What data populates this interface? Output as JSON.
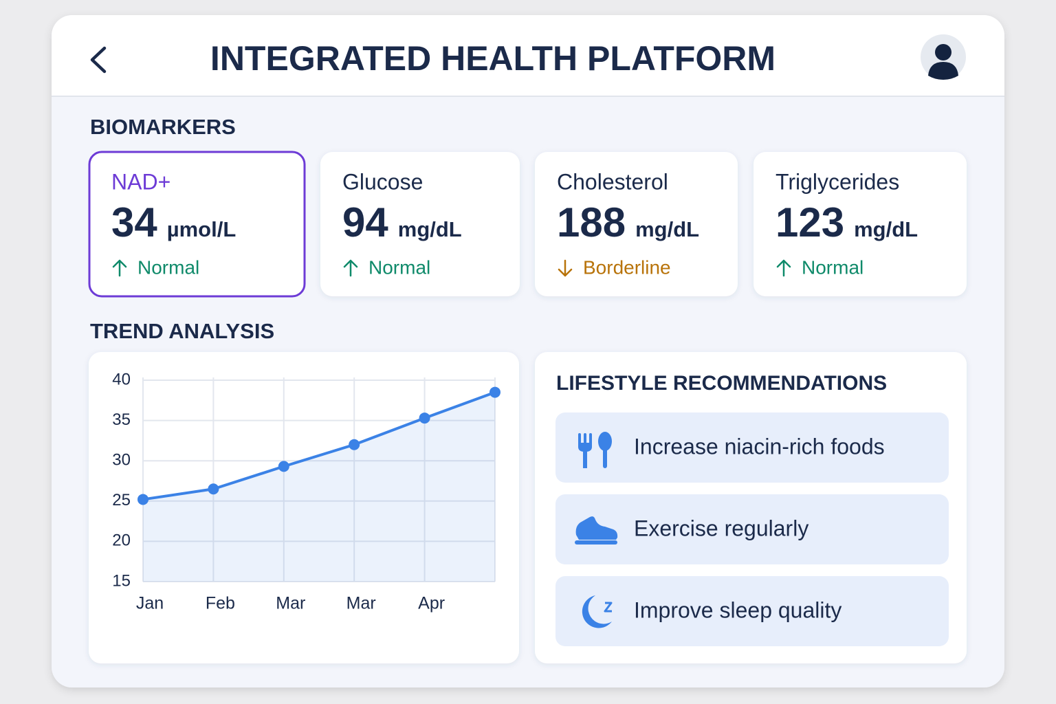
{
  "header": {
    "title": "INTEGRATED HEALTH PLATFORM"
  },
  "biomarkers": {
    "heading": "BIOMARKERS",
    "highlight_color": "#6d3bd6",
    "items": [
      {
        "name": "NAD+",
        "value": 34,
        "unit": "µmol/L",
        "status": "Normal",
        "trend": "up",
        "color": "#0f8a6a",
        "selected": true
      },
      {
        "name": "Glucose",
        "value": 94,
        "unit": "mg/dL",
        "status": "Normal",
        "trend": "up",
        "color": "#0f8a6a",
        "selected": false
      },
      {
        "name": "Cholesterol",
        "value": 188,
        "unit": "mg/dL",
        "status": "Borderline",
        "trend": "down",
        "color": "#b8730a",
        "selected": false
      },
      {
        "name": "Triglycerides",
        "value": 123,
        "unit": "mg/dL",
        "status": "Normal",
        "trend": "up",
        "color": "#0f8a6a",
        "selected": false
      }
    ]
  },
  "trend": {
    "heading": "TREND ANALYSIS"
  },
  "chart_data": {
    "type": "line",
    "categories": [
      "Jan",
      "Feb",
      "Mar",
      "Mar",
      "Apr",
      null
    ],
    "series": [
      {
        "color": "#3b82e6",
        "values": [
          25.2,
          26.5,
          29.3,
          32,
          35.3,
          38.5
        ]
      }
    ],
    "ylim": [
      15,
      40
    ],
    "yticks": [
      15,
      20,
      25,
      30,
      35,
      40
    ],
    "grid": true,
    "area": true
  },
  "lifestyle": {
    "heading": "LIFESTYLE RECOMMENDATIONS",
    "items": [
      {
        "text": "Increase niacin-rich foods"
      },
      {
        "text": "Exercise regularly"
      },
      {
        "text": "Improve sleep quality"
      }
    ]
  }
}
